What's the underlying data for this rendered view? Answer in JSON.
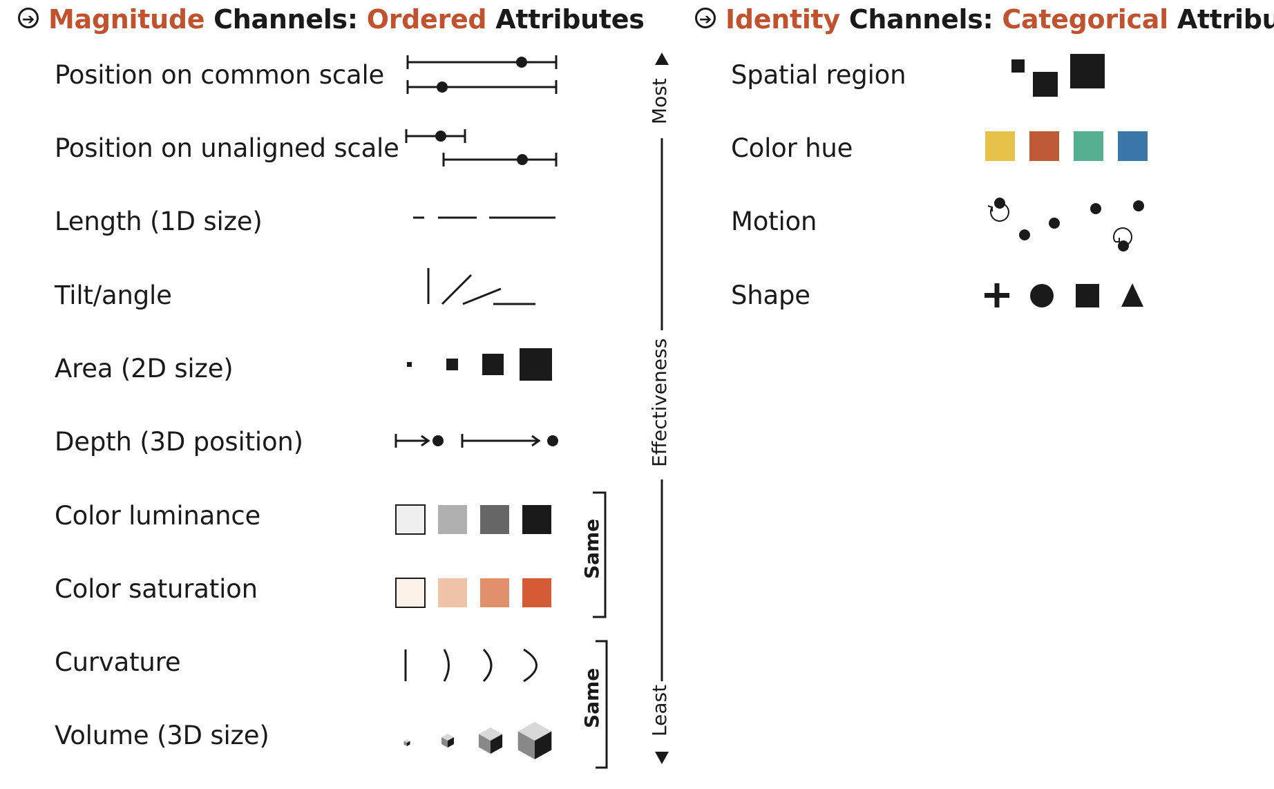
{
  "magnitude": {
    "header": {
      "icon": "arrow-right-circle-icon",
      "word1": "Magnitude",
      "word2": " Channels: ",
      "word3": "Ordered",
      "word4": " Attributes"
    },
    "rows": [
      {
        "label": "Position on common scale"
      },
      {
        "label": "Position on unaligned scale"
      },
      {
        "label": "Length (1D size)"
      },
      {
        "label": "Tilt/angle"
      },
      {
        "label": "Area (2D size)"
      },
      {
        "label": "Depth (3D position)"
      },
      {
        "label": "Color luminance"
      },
      {
        "label": "Color saturation"
      },
      {
        "label": "Curvature"
      },
      {
        "label": "Volume (3D size)"
      }
    ],
    "brackets": [
      {
        "label": "Same"
      },
      {
        "label": "Same"
      }
    ]
  },
  "effectiveness": {
    "top": "Most",
    "middle": "Effectiveness",
    "bottom": "Least"
  },
  "identity": {
    "header": {
      "icon": "arrow-right-circle-icon",
      "word1": "Identity",
      "word2": " Channels: ",
      "word3": "Categorical",
      "word4": " Attributes"
    },
    "rows": [
      {
        "label": "Spatial region"
      },
      {
        "label": "Color hue"
      },
      {
        "label": "Motion"
      },
      {
        "label": "Shape"
      }
    ]
  },
  "colors": {
    "accent": "#c0522e",
    "ink": "#1a1a1a",
    "luminance": [
      "#f0f0f0",
      "#b0b0b0",
      "#666666",
      "#1a1a1a"
    ],
    "saturation": [
      "#fdf2ea",
      "#efc3a7",
      "#e0916b",
      "#d45b36"
    ],
    "hue": [
      "#e7c24b",
      "#bf5a36",
      "#55af90",
      "#3b76aa"
    ]
  }
}
